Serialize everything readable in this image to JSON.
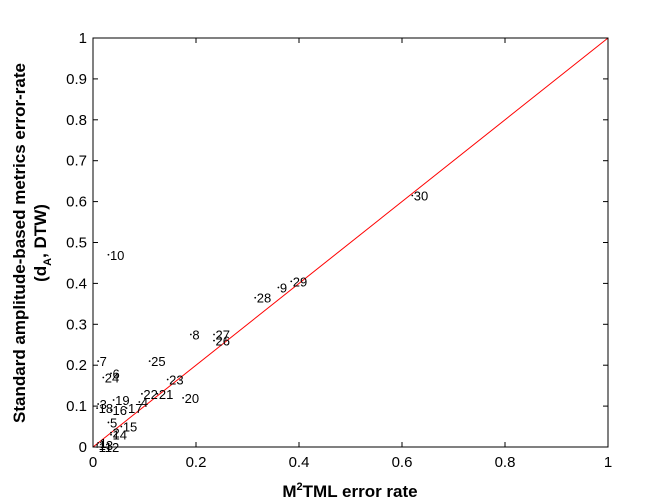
{
  "chart_data": {
    "type": "scatter",
    "xlabel": {
      "base": "M",
      "sup": "2",
      "rest": "TML error rate"
    },
    "ylabel": {
      "line1": "Standard amplitude-based metrics error-rate",
      "line2_prefix": "(d",
      "line2_sub": "A",
      "line2_suffix": ", DTW)"
    },
    "xlim": [
      0,
      1
    ],
    "ylim": [
      0,
      1
    ],
    "x_ticks": [
      0,
      0.2,
      0.4,
      0.6,
      0.8,
      1
    ],
    "x_tick_labels": [
      "0",
      "0.2",
      "0.4",
      "0.6",
      "0.8",
      "1"
    ],
    "y_ticks": [
      0,
      0.1,
      0.2,
      0.3,
      0.4,
      0.5,
      0.6,
      0.7,
      0.8,
      0.9,
      1
    ],
    "y_tick_labels": [
      "0",
      "0.1",
      "0.2",
      "0.3",
      "0.4",
      "0.5",
      "0.6",
      "0.7",
      "0.8",
      "0.9",
      "1"
    ],
    "grid": false,
    "reference_line": {
      "from": [
        0,
        0
      ],
      "to": [
        1,
        1
      ],
      "color": "#ff0000"
    },
    "point_color": "#000000",
    "points": [
      {
        "label": "1",
        "x": 0.01,
        "y": 0.01
      },
      {
        "label": "2",
        "x": 0.035,
        "y": 0.035
      },
      {
        "label": "3",
        "x": 0.01,
        "y": 0.105
      },
      {
        "label": "4",
        "x": 0.09,
        "y": 0.11
      },
      {
        "label": "5",
        "x": 0.03,
        "y": 0.06
      },
      {
        "label": "6",
        "x": 0.035,
        "y": 0.18
      },
      {
        "label": "7",
        "x": 0.01,
        "y": 0.21
      },
      {
        "label": "8",
        "x": 0.19,
        "y": 0.275
      },
      {
        "label": "9",
        "x": 0.36,
        "y": 0.39
      },
      {
        "label": "10",
        "x": 0.03,
        "y": 0.47
      },
      {
        "label": "11",
        "x": 0.008,
        "y": 0.0
      },
      {
        "label": "12",
        "x": 0.02,
        "y": 0.0
      },
      {
        "label": "13",
        "x": 0.008,
        "y": 0.005
      },
      {
        "label": "14",
        "x": 0.035,
        "y": 0.03
      },
      {
        "label": "15",
        "x": 0.055,
        "y": 0.05
      },
      {
        "label": "16",
        "x": 0.035,
        "y": 0.09
      },
      {
        "label": "17",
        "x": 0.065,
        "y": 0.095
      },
      {
        "label": "18",
        "x": 0.008,
        "y": 0.095
      },
      {
        "label": "19",
        "x": 0.04,
        "y": 0.115
      },
      {
        "label": "20",
        "x": 0.175,
        "y": 0.12
      },
      {
        "label": "21",
        "x": 0.125,
        "y": 0.13
      },
      {
        "label": "22",
        "x": 0.095,
        "y": 0.13
      },
      {
        "label": "23",
        "x": 0.145,
        "y": 0.165
      },
      {
        "label": "24",
        "x": 0.02,
        "y": 0.17
      },
      {
        "label": "25",
        "x": 0.11,
        "y": 0.21
      },
      {
        "label": "26",
        "x": 0.235,
        "y": 0.26
      },
      {
        "label": "27",
        "x": 0.235,
        "y": 0.275
      },
      {
        "label": "28",
        "x": 0.315,
        "y": 0.365
      },
      {
        "label": "29",
        "x": 0.385,
        "y": 0.405
      },
      {
        "label": "30",
        "x": 0.62,
        "y": 0.615
      }
    ]
  }
}
